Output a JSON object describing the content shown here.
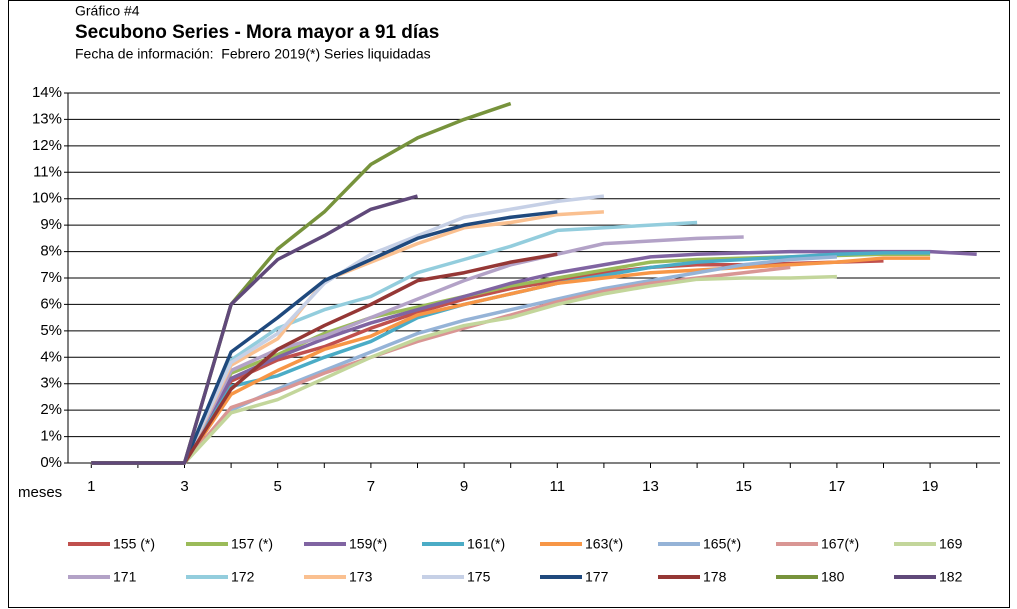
{
  "chart_data": {
    "type": "line",
    "pretitle": "Gráfico #4",
    "title": "Secubono Series - Mora mayor a 91 días",
    "subtitle": "Fecha de información:  Febrero 2019(*) Series liquidadas",
    "x_label": "meses",
    "x": [
      1,
      2,
      3,
      4,
      5,
      6,
      7,
      8,
      9,
      10,
      11,
      12,
      13,
      14,
      15,
      16,
      17,
      18,
      19,
      20
    ],
    "xlim": [
      0.5,
      20.5
    ],
    "xticks": [
      1,
      3,
      5,
      7,
      9,
      11,
      13,
      15,
      17,
      19
    ],
    "ylim": [
      0,
      14
    ],
    "yticks": [
      {
        "value": 0,
        "label": "0%"
      },
      {
        "value": 1,
        "label": "1%"
      },
      {
        "value": 2,
        "label": "2%"
      },
      {
        "value": 3,
        "label": "3%"
      },
      {
        "value": 4,
        "label": "4%"
      },
      {
        "value": 5,
        "label": "5%"
      },
      {
        "value": 6,
        "label": "6%"
      },
      {
        "value": 7,
        "label": "7%"
      },
      {
        "value": 8,
        "label": "8%"
      },
      {
        "value": 9,
        "label": "9%"
      },
      {
        "value": 10,
        "label": "10%"
      },
      {
        "value": 11,
        "label": "11%"
      },
      {
        "value": 12,
        "label": "12%"
      },
      {
        "value": 13,
        "label": "13%"
      },
      {
        "value": 14,
        "label": "14%"
      }
    ],
    "grid": true,
    "legend": "bottom",
    "series": [
      {
        "name": "155 (*)",
        "color": "#c0504d",
        "values": [
          0,
          0,
          0,
          3.1,
          3.9,
          4.4,
          5.1,
          5.7,
          6.2,
          6.6,
          6.9,
          7.2,
          7.4,
          7.5,
          7.5,
          7.55,
          7.6,
          7.65,
          null,
          null
        ]
      },
      {
        "name": "157 (*)",
        "color": "#9bbb59",
        "values": [
          0,
          0,
          0,
          3.4,
          4.1,
          4.9,
          5.5,
          5.9,
          6.3,
          6.7,
          7.0,
          7.3,
          7.6,
          7.7,
          7.75,
          7.8,
          7.85,
          7.9,
          7.9,
          null
        ]
      },
      {
        "name": "159(*)",
        "color": "#8064a2",
        "values": [
          0,
          0,
          0,
          3.2,
          4.0,
          4.7,
          5.3,
          5.8,
          6.3,
          6.8,
          7.2,
          7.5,
          7.8,
          7.9,
          7.95,
          8.0,
          8.0,
          8.0,
          8.0,
          7.9
        ]
      },
      {
        "name": "161(*)",
        "color": "#4bacc6",
        "values": [
          0,
          0,
          0,
          2.9,
          3.3,
          4.0,
          4.6,
          5.5,
          6.0,
          6.4,
          6.8,
          7.1,
          7.4,
          7.6,
          7.7,
          7.8,
          7.9,
          7.95,
          7.95,
          null
        ]
      },
      {
        "name": "163(*)",
        "color": "#f79646",
        "values": [
          0,
          0,
          0,
          2.6,
          3.5,
          4.3,
          4.8,
          5.6,
          6.0,
          6.4,
          6.8,
          7.0,
          7.2,
          7.3,
          7.4,
          7.5,
          7.6,
          7.75,
          7.75,
          null
        ]
      },
      {
        "name": "165(*)",
        "color": "#95b3d7",
        "values": [
          0,
          0,
          0,
          2.0,
          2.8,
          3.5,
          4.2,
          4.9,
          5.4,
          5.8,
          6.2,
          6.6,
          6.9,
          7.2,
          7.5,
          7.7,
          7.8,
          null,
          null,
          null
        ]
      },
      {
        "name": "167(*)",
        "color": "#d99694",
        "values": [
          0,
          0,
          0,
          2.1,
          2.7,
          3.4,
          4.0,
          4.6,
          5.1,
          5.6,
          6.1,
          6.5,
          6.8,
          7.0,
          7.2,
          7.4,
          null,
          null,
          null,
          null
        ]
      },
      {
        "name": "169",
        "color": "#c3d69b",
        "values": [
          0,
          0,
          0,
          1.9,
          2.4,
          3.2,
          4.0,
          4.7,
          5.2,
          5.5,
          6.0,
          6.4,
          6.7,
          6.95,
          7.0,
          7.0,
          7.05,
          null,
          null,
          null
        ]
      },
      {
        "name": "171",
        "color": "#b3a2c7",
        "values": [
          0,
          0,
          0,
          3.5,
          4.3,
          4.8,
          5.5,
          6.2,
          6.9,
          7.5,
          7.9,
          8.3,
          8.4,
          8.5,
          8.55,
          null,
          null,
          null,
          null,
          null
        ]
      },
      {
        "name": "172",
        "color": "#93cddd",
        "values": [
          0,
          0,
          0,
          3.9,
          5.1,
          5.8,
          6.3,
          7.2,
          7.7,
          8.2,
          8.8,
          8.9,
          9.0,
          9.1,
          null,
          null,
          null,
          null,
          null,
          null
        ]
      },
      {
        "name": "173",
        "color": "#fac090",
        "values": [
          0,
          0,
          0,
          3.7,
          4.7,
          6.9,
          7.6,
          8.3,
          8.9,
          9.1,
          9.4,
          9.5,
          null,
          null,
          null,
          null,
          null,
          null,
          null,
          null
        ]
      },
      {
        "name": "175",
        "color": "#c6d0e6",
        "values": [
          0,
          0,
          0,
          3.8,
          4.9,
          6.8,
          7.9,
          8.6,
          9.3,
          9.6,
          9.9,
          10.1,
          null,
          null,
          null,
          null,
          null,
          null,
          null,
          null
        ]
      },
      {
        "name": "177",
        "color": "#1f497d",
        "values": [
          0,
          0,
          0,
          4.2,
          5.5,
          6.9,
          7.7,
          8.5,
          9.0,
          9.3,
          9.5,
          null,
          null,
          null,
          null,
          null,
          null,
          null,
          null,
          null
        ]
      },
      {
        "name": "178",
        "color": "#953735",
        "values": [
          0,
          0,
          0,
          2.8,
          4.3,
          5.2,
          6.0,
          6.9,
          7.2,
          7.6,
          7.9,
          null,
          null,
          null,
          null,
          null,
          null,
          null,
          null,
          null
        ]
      },
      {
        "name": "180",
        "color": "#77933c",
        "values": [
          0,
          0,
          0,
          6.0,
          8.1,
          9.5,
          11.3,
          12.3,
          13.0,
          13.6,
          null,
          null,
          null,
          null,
          null,
          null,
          null,
          null,
          null,
          null
        ]
      },
      {
        "name": "182",
        "color": "#60497a",
        "values": [
          0,
          0,
          0,
          6.0,
          7.7,
          8.6,
          9.6,
          10.1,
          null,
          null,
          null,
          null,
          null,
          null,
          null,
          null,
          null,
          null,
          null,
          null
        ]
      }
    ]
  }
}
